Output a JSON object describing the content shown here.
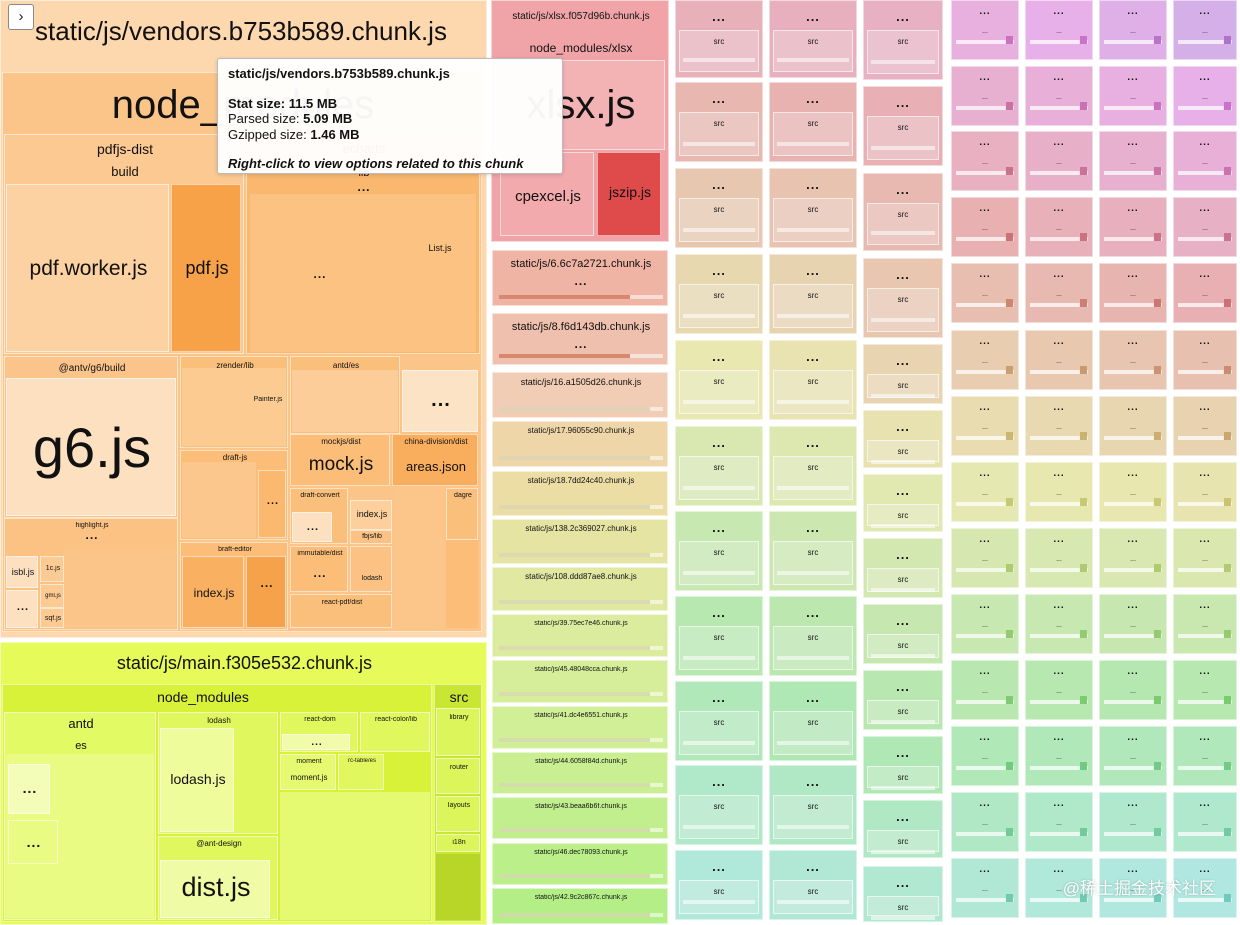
{
  "toolbar": {
    "toggle_icon": "›"
  },
  "vendors": {
    "title": "static/js/vendors.b753b589.chunk.js",
    "node_modules": "node_modules",
    "pdfjs_dist": "pdfjs-dist",
    "build": "build",
    "pdf_worker": "pdf.worker.js",
    "pdf_js": "pdf.js",
    "echarts": "echarts",
    "lib": "lib",
    "list_js": "List.js",
    "antv": "@antv/g6/build",
    "g6": "g6.js",
    "zrender": "zrender/lib",
    "painter": "Painter.js",
    "antd_es": "antd/es",
    "mockjs_dist": "mockjs/dist",
    "mock_js": "mock.js",
    "china_division": "china-division/dist",
    "areas_json": "areas.json",
    "draft_js": "draft-js",
    "draft_convert": "draft-convert",
    "index_js": "index.js",
    "fbjs_lib": "fbjs/lib",
    "dagre": "dagre",
    "immutable_dist": "immutable/dist",
    "lodash": "lodash",
    "react_pdf": "react-pdf/dist",
    "highlight": "highlight.js",
    "isbl": "isbl.js",
    "onec": "1c.js",
    "gml": "gml.js",
    "sqf": "sqf.js",
    "braft_editor": "braft-editor",
    "braft_index": "index.js",
    "dots": "..."
  },
  "xlsx": {
    "title": "static/js/xlsx.f057d96b.chunk.js",
    "node_modules": "node_modules/xlsx",
    "xlsx_js": "xlsx.js",
    "cpexcel": "cpexcel.js",
    "jszip": "jszip.js"
  },
  "main": {
    "title": "static/js/main.f305e532.chunk.js",
    "node_modules": "node_modules",
    "antd": "antd",
    "es": "es",
    "lodash_dir": "lodash",
    "lodash_js": "lodash.js",
    "react_dom": "react-dom",
    "react_color": "react-color/lib",
    "moment": "moment",
    "moment_js": "moment.js",
    "rc_table": "rc-table/es",
    "ant_design": "@ant-design",
    "dist_js": "dist.js",
    "src": "src",
    "library": "library",
    "router": "router",
    "layouts": "layouts",
    "i18n": "i18n"
  },
  "chunks": [
    "static/js/6.6c7a2721.chunk.js",
    "static/js/8.f6d143db.chunk.js",
    "static/js/16.a1505d26.chunk.js",
    "static/js/17.96055c90.chunk.js",
    "static/js/18.7dd24c40.chunk.js",
    "static/js/138.2c369027.chunk.js",
    "static/js/108.ddd87ae8.chunk.js",
    "static/js/39.75ec7e46.chunk.js",
    "static/js/45.48048cca.chunk.js",
    "static/js/41.dc4e6551.chunk.js",
    "static/js/44.6058f84d.chunk.js",
    "static/js/43.beaa6b6f.chunk.js",
    "static/js/46.dec78093.chunk.js",
    "static/js/42.9c2c867c.chunk.js"
  ],
  "tile_labels": {
    "dots": "...",
    "src": "src"
  },
  "tooltip": {
    "title": "static/js/vendors.b753b589.chunk.js",
    "stat_label": "Stat size:",
    "stat_value": "11.5 MB",
    "parsed_label": "Parsed size:",
    "parsed_value": "5.09 MB",
    "gzip_label": "Gzipped size:",
    "gzip_value": "1.46 MB",
    "note": "Right-click to view options related to this chunk"
  },
  "watermark": "@稀土掘金技术社区",
  "colors": {
    "vendors": "#fdd9b0",
    "vendors_dark": "#f7a652",
    "xlsx": "#f2a1a5",
    "xlsx_dark": "#e04848",
    "main": "#e6fb5a",
    "main_dark": "#c8e832"
  }
}
